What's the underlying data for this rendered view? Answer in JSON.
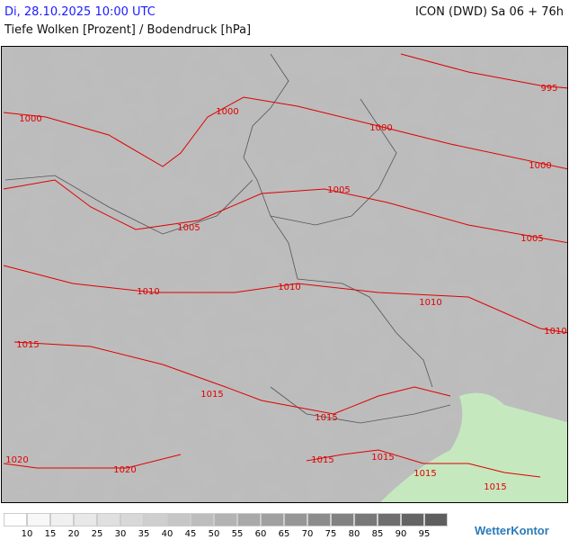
{
  "header": {
    "date": "Di, 28.10.2025 10:00 UTC",
    "model": "ICON (DWD) Sa 06 + 76h",
    "parameter": "Tiefe Wolken [Prozent] / Bodendruck [hPa]"
  },
  "map": {
    "region": "Germany / Central Europe",
    "isobar_color": "#e00000",
    "isobars": [
      {
        "label": "995",
        "value": 995
      },
      {
        "label": "1000",
        "value": 1000
      },
      {
        "label": "1005",
        "value": 1005
      },
      {
        "label": "1010",
        "value": 1010
      },
      {
        "label": "1015",
        "value": 1015
      },
      {
        "label": "1020",
        "value": 1020
      }
    ],
    "isobar_labels": [
      [
        "995",
        610,
        97
      ],
      [
        "1000",
        33,
        131
      ],
      [
        "1000",
        252,
        123
      ],
      [
        "1000",
        423,
        141
      ],
      [
        "1000",
        600,
        183
      ],
      [
        "1005",
        209,
        252
      ],
      [
        "1005",
        376,
        210
      ],
      [
        "1005",
        591,
        264
      ],
      [
        "1010",
        164,
        323
      ],
      [
        "1010",
        321,
        318
      ],
      [
        "1010",
        478,
        335
      ],
      [
        "1010",
        617,
        367
      ],
      [
        "1015",
        30,
        382
      ],
      [
        "1015",
        235,
        437
      ],
      [
        "1015",
        362,
        463
      ],
      [
        "1015",
        358,
        510
      ],
      [
        "1015",
        425,
        507
      ],
      [
        "1015",
        472,
        525
      ],
      [
        "1015",
        550,
        540
      ],
      [
        "1020",
        18,
        510
      ],
      [
        "1020",
        138,
        521
      ]
    ]
  },
  "legend": {
    "labels": [
      "10",
      "15",
      "20",
      "25",
      "30",
      "35",
      "40",
      "45",
      "50",
      "55",
      "60",
      "65",
      "70",
      "75",
      "80",
      "85",
      "90",
      "95"
    ],
    "colors": [
      "#ffffff",
      "#f7f7f7",
      "#f0f0f0",
      "#e8e8e8",
      "#e0e0e0",
      "#d8d8d8",
      "#cfcfcf",
      "#c6c6c6",
      "#bdbdbd",
      "#b3b3b3",
      "#a9a9a9",
      "#a0a0a0",
      "#969696",
      "#8c8c8c",
      "#828282",
      "#787878",
      "#6e6e6e",
      "#646464",
      "#5e5e5e"
    ]
  },
  "logo": "WetterKontor"
}
